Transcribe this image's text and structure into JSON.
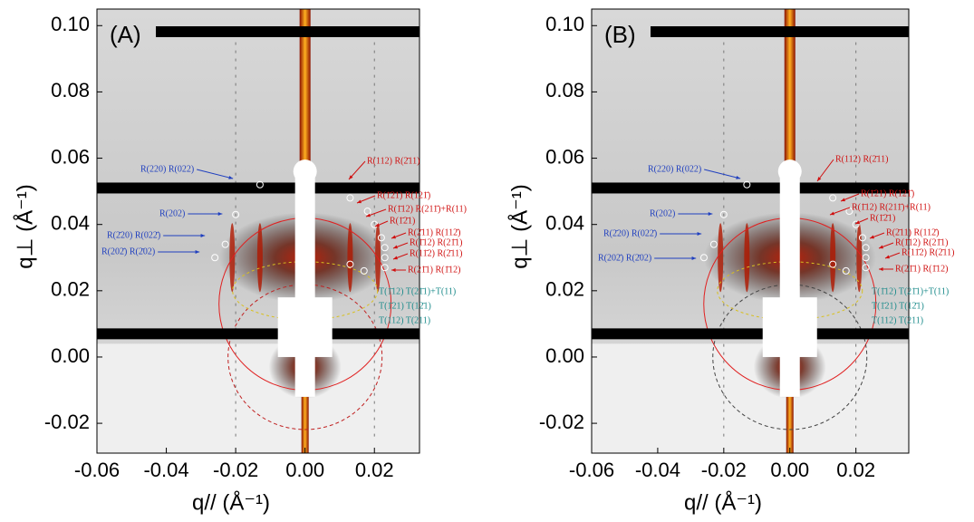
{
  "chart_data": [
    {
      "type": "image",
      "title": "(A)",
      "xlabel": "q// (Å⁻¹)",
      "ylabel": "q⊥ (Å⁻¹)",
      "xlim": [
        -0.06,
        0.033
      ],
      "ylim": [
        -0.029,
        0.105
      ],
      "xticks": [
        {
          "value": -0.06,
          "label": "-0.06"
        },
        {
          "value": -0.04,
          "label": "-0.04"
        },
        {
          "value": -0.02,
          "label": "-0.02"
        },
        {
          "value": 0.0,
          "label": "0.00"
        },
        {
          "value": 0.02,
          "label": "0.02"
        }
      ],
      "yticks": [
        {
          "value": -0.02,
          "label": "-0.02"
        },
        {
          "value": 0.0,
          "label": "0.00"
        },
        {
          "value": 0.02,
          "label": "0.02"
        },
        {
          "value": 0.04,
          "label": "0.04"
        },
        {
          "value": 0.06,
          "label": "0.06"
        },
        {
          "value": 0.08,
          "label": "0.08"
        },
        {
          "value": 0.1,
          "label": "0.10"
        }
      ],
      "annotations": [
        {
          "text": "R(220) R(022)",
          "color": "#1f3fbf"
        },
        {
          "text": "R(202)",
          "color": "#1f3fbf"
        },
        {
          "text": "R(2̄20) R(022̄)",
          "color": "#1f3fbf"
        },
        {
          "text": "R(202̄) R(2̄02)",
          "color": "#1f3fbf"
        },
        {
          "text": "R(112) R(2̄11)",
          "color": "#d01010"
        },
        {
          "text": "R(1̄21) R(121̄)",
          "color": "#d01010"
        },
        {
          "text": "R(1̄12) R(211̄)+R(11)",
          "color": "#d01010"
        },
        {
          "text": "R(1̄2̄1)",
          "color": "#d01010"
        },
        {
          "text": "R(2̄11) R(112̄)",
          "color": "#d01010"
        },
        {
          "text": "R(1̄12) R(21̄1)",
          "color": "#d01010"
        },
        {
          "text": "R(11̄2) R(2̄11)",
          "color": "#d01010"
        },
        {
          "text": "R(21̄1) R(1̄12)",
          "color": "#d01010"
        },
        {
          "text": "T(1̄12) T(21̄1)+T(11)",
          "color": "#1a8a8a"
        },
        {
          "text": "T(1̄21) T(12̄1)",
          "color": "#1a8a8a"
        },
        {
          "text": "T(112) T(211)",
          "color": "#1a8a8a"
        }
      ]
    },
    {
      "type": "image",
      "title": "(B)",
      "xlabel": "q// (Å⁻¹)",
      "ylabel": "q⊥ (Å⁻¹)",
      "xlim": [
        -0.06,
        0.036
      ],
      "ylim": [
        -0.029,
        0.105
      ],
      "xticks": [
        {
          "value": -0.06,
          "label": "-0.06"
        },
        {
          "value": -0.04,
          "label": "-0.04"
        },
        {
          "value": -0.02,
          "label": "-0.02"
        },
        {
          "value": 0.0,
          "label": "0.00"
        },
        {
          "value": 0.02,
          "label": "0.02"
        }
      ],
      "yticks": [
        {
          "value": -0.02,
          "label": "-0.02"
        },
        {
          "value": 0.0,
          "label": "0.00"
        },
        {
          "value": 0.02,
          "label": "0.02"
        },
        {
          "value": 0.04,
          "label": "0.04"
        },
        {
          "value": 0.06,
          "label": "0.06"
        },
        {
          "value": 0.08,
          "label": "0.08"
        },
        {
          "value": 0.1,
          "label": "0.10"
        }
      ],
      "annotations": [
        {
          "text": "R(220) R(022)",
          "color": "#1f3fbf"
        },
        {
          "text": "R(202)",
          "color": "#1f3fbf"
        },
        {
          "text": "R(2̄20) R(022̄)",
          "color": "#1f3fbf"
        },
        {
          "text": "R(202̄) R(2̄02)",
          "color": "#1f3fbf"
        },
        {
          "text": "R(112) R(2̄11)",
          "color": "#d01010"
        },
        {
          "text": "R(1̄21) R(121̄)",
          "color": "#d01010"
        },
        {
          "text": "R(1̄12) R(211̄)+R(11)",
          "color": "#d01010"
        },
        {
          "text": "R(1̄2̄1)",
          "color": "#d01010"
        },
        {
          "text": "R(2̄11) R(112̄)",
          "color": "#d01010"
        },
        {
          "text": "R(1̄12) R(21̄1)",
          "color": "#d01010"
        },
        {
          "text": "R(11̄2) R(2̄11)",
          "color": "#d01010"
        },
        {
          "text": "R(21̄1) R(1̄12)",
          "color": "#d01010"
        },
        {
          "text": "T(1̄12) T(21̄1)+T(11)",
          "color": "#1a8a8a"
        },
        {
          "text": "T(1̄21) T(12̄1)",
          "color": "#1a8a8a"
        },
        {
          "text": "T(112) T(211)",
          "color": "#1a8a8a"
        }
      ]
    }
  ]
}
